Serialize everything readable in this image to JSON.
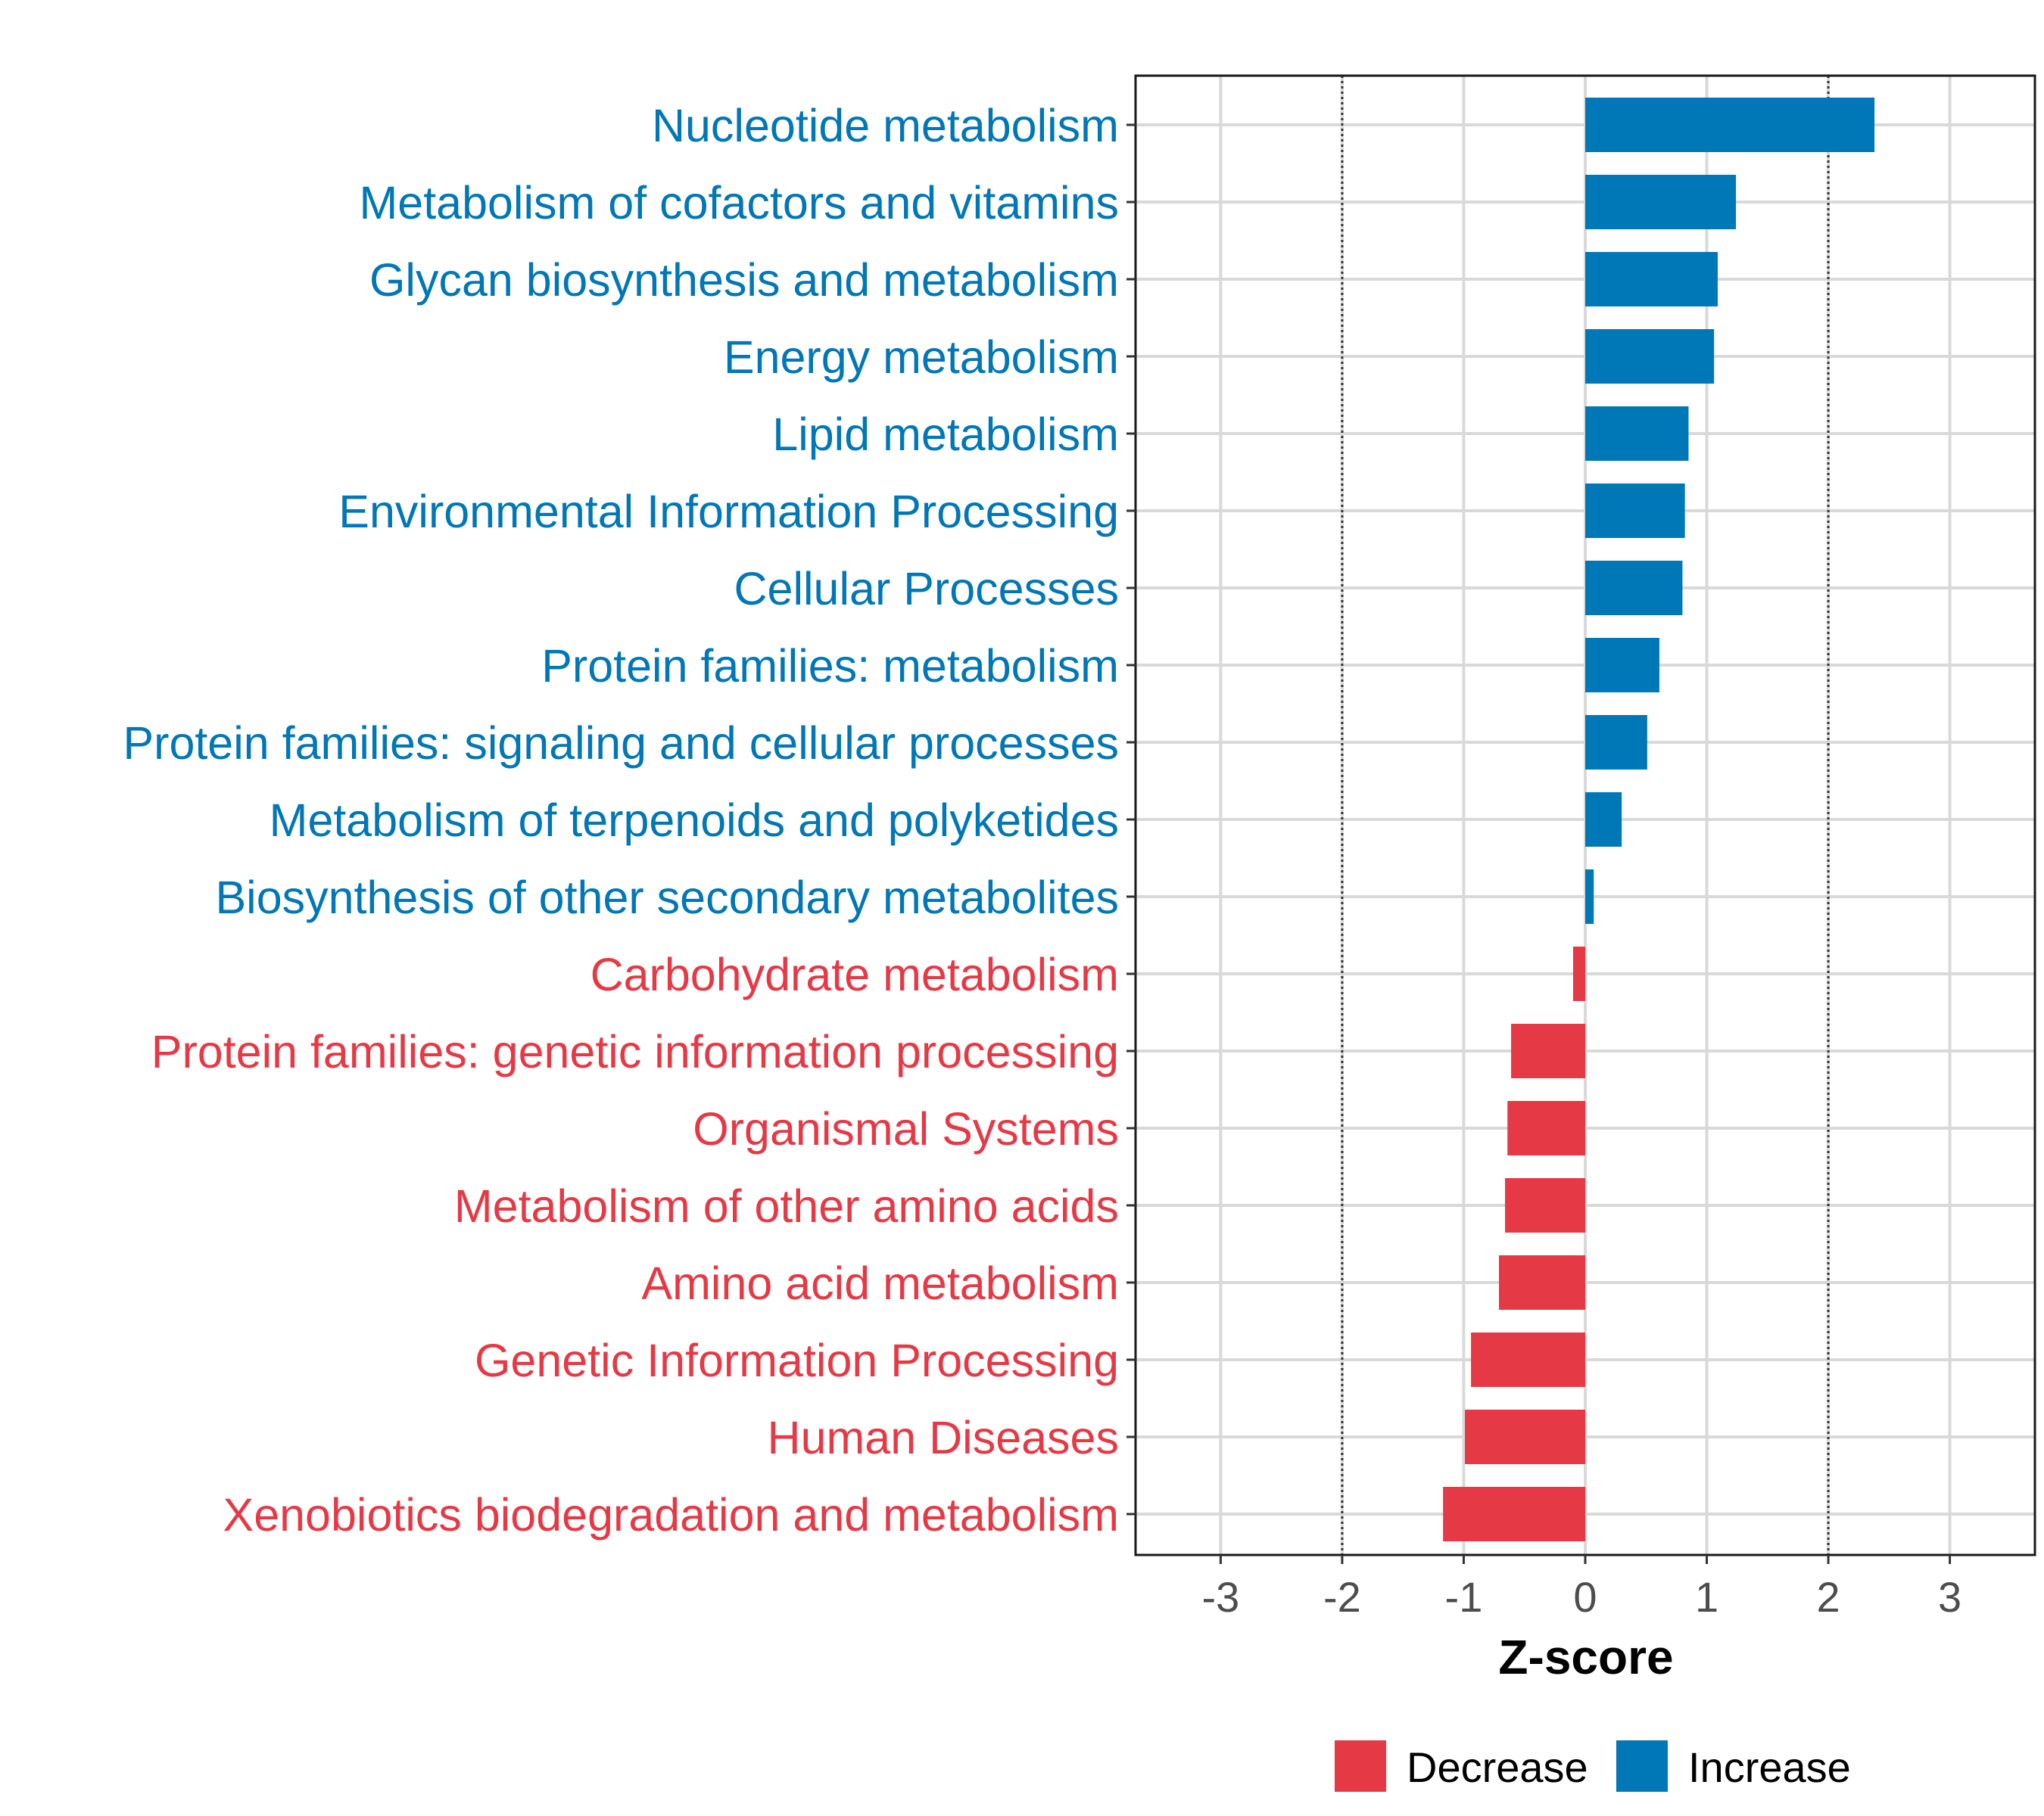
{
  "chart_data": {
    "type": "bar",
    "orientation": "horizontal",
    "title": "",
    "xlabel": "Z-score",
    "ylabel": "",
    "xlim": [
      -3.7,
      3.7
    ],
    "x_ticks": [
      -3,
      -2,
      -1,
      0,
      1,
      2,
      3
    ],
    "x_tick_labels": [
      "-3",
      "-2",
      "-1",
      "0",
      "1",
      "2",
      "3"
    ],
    "reference_lines": [
      -2,
      2
    ],
    "grid": true,
    "legend_position": "bottom",
    "colors": {
      "Decrease": "#E63946",
      "Increase": "#0077B6"
    },
    "categories": [
      "Nucleotide metabolism",
      "Metabolism of cofactors and vitamins",
      "Glycan biosynthesis and metabolism",
      "Energy metabolism",
      "Lipid metabolism",
      "Environmental Information Processing",
      "Cellular Processes",
      "Protein families: metabolism",
      "Protein families: signaling and cellular processes",
      "Metabolism of terpenoids and polyketides",
      "Biosynthesis of other secondary metabolites",
      "Carbohydrate metabolism",
      "Protein families: genetic information processing",
      "Organismal Systems",
      "Metabolism of other amino acids",
      "Amino acid metabolism",
      "Genetic Information Processing",
      "Human Diseases",
      "Xenobiotics biodegradation and metabolism"
    ],
    "values": [
      2.38,
      1.24,
      1.09,
      1.06,
      0.85,
      0.82,
      0.8,
      0.61,
      0.51,
      0.3,
      0.07,
      -0.1,
      -0.61,
      -0.64,
      -0.66,
      -0.71,
      -0.94,
      -0.99,
      -1.17
    ],
    "groups": [
      "Increase",
      "Increase",
      "Increase",
      "Increase",
      "Increase",
      "Increase",
      "Increase",
      "Increase",
      "Increase",
      "Increase",
      "Increase",
      "Decrease",
      "Decrease",
      "Decrease",
      "Decrease",
      "Decrease",
      "Decrease",
      "Decrease",
      "Decrease"
    ],
    "legend": [
      "Decrease",
      "Increase"
    ]
  }
}
